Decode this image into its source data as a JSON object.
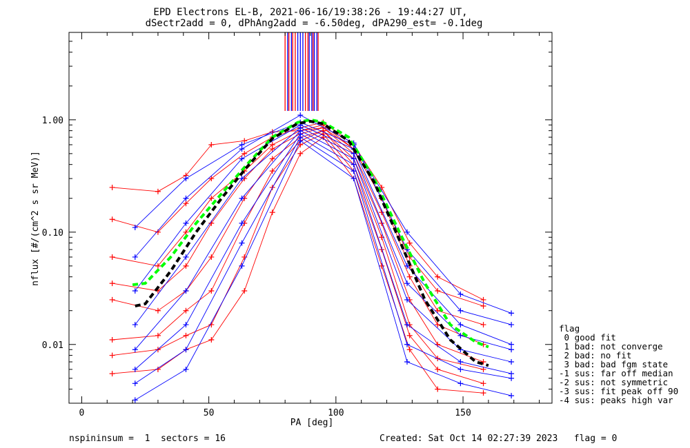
{
  "chart_data": {
    "type": "line",
    "title": "EPD Electrons EL-B, 2021-06-16/19:38:26 - 19:44:27 UT,",
    "subtitle": "dSectr2add = 0, dPhAng2add = -6.50deg, dPA290_est=  -0.1deg",
    "xlabel": "PA [deg]",
    "ylabel": "nflux [#/(cm^2 s sr MeV)]",
    "xlim": [
      -5,
      185
    ],
    "ylim": [
      0.003,
      6.0
    ],
    "yscale": "log",
    "x_ticks": [
      0,
      50,
      100,
      150
    ],
    "x_tick_labels": [
      "0",
      "50",
      "100",
      "150"
    ],
    "y_ticks": [
      0.01,
      0.1,
      1.0
    ],
    "y_tick_labels": [
      "0.01",
      "0.10",
      "1.00"
    ],
    "grid": false,
    "series": [
      {
        "color": "#ff0000",
        "x": [
          12,
          30,
          41,
          51,
          64,
          75,
          86,
          95,
          107,
          118,
          129,
          140,
          158
        ],
        "y": [
          0.25,
          0.23,
          0.32,
          0.6,
          0.65,
          0.78,
          0.8,
          0.85,
          0.55,
          0.2,
          0.06,
          0.03,
          0.022
        ]
      },
      {
        "color": "#ff0000",
        "x": [
          12,
          30,
          41,
          51,
          64,
          75,
          86,
          95,
          107,
          118,
          129,
          140,
          158
        ],
        "y": [
          0.13,
          0.1,
          0.18,
          0.3,
          0.5,
          0.7,
          0.85,
          0.95,
          0.6,
          0.25,
          0.08,
          0.04,
          0.025
        ]
      },
      {
        "color": "#ff0000",
        "x": [
          12,
          30,
          41,
          51,
          64,
          75,
          86,
          95,
          107,
          118,
          129,
          140,
          158
        ],
        "y": [
          0.06,
          0.05,
          0.1,
          0.2,
          0.35,
          0.6,
          0.8,
          0.9,
          0.55,
          0.2,
          0.05,
          0.02,
          0.015
        ]
      },
      {
        "color": "#ff0000",
        "x": [
          12,
          30,
          41,
          51,
          64,
          75,
          86,
          95,
          107,
          118,
          129,
          140,
          158
        ],
        "y": [
          0.035,
          0.03,
          0.05,
          0.12,
          0.3,
          0.55,
          0.75,
          0.85,
          0.5,
          0.15,
          0.04,
          0.015,
          0.01
        ]
      },
      {
        "color": "#ff0000",
        "x": [
          12,
          30,
          41,
          51,
          64,
          75,
          86,
          95,
          107,
          118,
          129,
          140,
          158
        ],
        "y": [
          0.025,
          0.02,
          0.03,
          0.06,
          0.2,
          0.45,
          0.7,
          0.8,
          0.45,
          0.12,
          0.025,
          0.01,
          0.007
        ]
      },
      {
        "color": "#ff0000",
        "x": [
          12,
          30,
          41,
          51,
          64,
          75,
          86,
          95,
          107,
          118,
          129,
          140,
          158
        ],
        "y": [
          0.011,
          0.012,
          0.02,
          0.03,
          0.12,
          0.35,
          0.65,
          0.8,
          0.4,
          0.09,
          0.015,
          0.0075,
          0.006
        ]
      },
      {
        "color": "#ff0000",
        "x": [
          12,
          30,
          41,
          51,
          64,
          75,
          86,
          95,
          107,
          118,
          129,
          140,
          158
        ],
        "y": [
          0.008,
          0.009,
          0.012,
          0.015,
          0.06,
          0.25,
          0.6,
          0.75,
          0.35,
          0.07,
          0.012,
          0.006,
          0.0045
        ]
      },
      {
        "color": "#ff0000",
        "x": [
          12,
          30,
          41,
          51,
          64,
          75,
          86,
          95,
          107,
          118,
          129,
          140,
          158
        ],
        "y": [
          0.0055,
          0.006,
          0.009,
          0.011,
          0.03,
          0.15,
          0.5,
          0.7,
          0.3,
          0.05,
          0.009,
          0.004,
          0.0037
        ]
      },
      {
        "color": "#0000ff",
        "x": [
          21,
          41,
          63,
          86,
          107,
          128,
          149,
          169
        ],
        "y": [
          0.11,
          0.3,
          0.6,
          0.95,
          0.6,
          0.1,
          0.028,
          0.019
        ]
      },
      {
        "color": "#0000ff",
        "x": [
          21,
          41,
          63,
          86,
          107,
          128,
          149,
          169
        ],
        "y": [
          0.06,
          0.2,
          0.55,
          1.1,
          0.62,
          0.07,
          0.02,
          0.015
        ]
      },
      {
        "color": "#0000ff",
        "x": [
          21,
          41,
          63,
          86,
          107,
          128,
          149,
          169
        ],
        "y": [
          0.03,
          0.12,
          0.45,
          0.9,
          0.55,
          0.05,
          0.015,
          0.01
        ]
      },
      {
        "color": "#0000ff",
        "x": [
          21,
          41,
          63,
          86,
          107,
          128,
          149,
          169
        ],
        "y": [
          0.015,
          0.06,
          0.3,
          0.85,
          0.5,
          0.035,
          0.012,
          0.009
        ]
      },
      {
        "color": "#0000ff",
        "x": [
          21,
          41,
          63,
          86,
          107,
          128,
          149,
          169
        ],
        "y": [
          0.009,
          0.03,
          0.2,
          0.8,
          0.45,
          0.025,
          0.009,
          0.007
        ]
      },
      {
        "color": "#0000ff",
        "x": [
          21,
          41,
          63,
          86,
          107,
          128,
          149,
          169
        ],
        "y": [
          0.006,
          0.015,
          0.12,
          0.75,
          0.4,
          0.015,
          0.007,
          0.0055
        ]
      },
      {
        "color": "#0000ff",
        "x": [
          21,
          41,
          63,
          86,
          107,
          128,
          149,
          169
        ],
        "y": [
          0.0045,
          0.009,
          0.08,
          0.7,
          0.35,
          0.01,
          0.006,
          0.005
        ]
      },
      {
        "color": "#0000ff",
        "x": [
          21,
          41,
          63,
          86,
          107,
          128,
          149,
          169
        ],
        "y": [
          0.0032,
          0.006,
          0.05,
          0.65,
          0.3,
          0.007,
          0.0045,
          0.0035
        ]
      },
      {
        "color": "#00ff00",
        "style": "dashed",
        "x": [
          20,
          25,
          35,
          45,
          55,
          65,
          75,
          85,
          90,
          95,
          105,
          115,
          125,
          135,
          145,
          155,
          160
        ],
        "y": [
          0.034,
          0.035,
          0.06,
          0.12,
          0.22,
          0.4,
          0.7,
          0.95,
          1.0,
          0.95,
          0.7,
          0.3,
          0.1,
          0.035,
          0.015,
          0.0105,
          0.0095
        ]
      },
      {
        "color": "#000000",
        "style": "dashed",
        "x": [
          21,
          25,
          35,
          45,
          55,
          65,
          75,
          85,
          90,
          95,
          105,
          115,
          125,
          135,
          145,
          155,
          160
        ],
        "y": [
          0.022,
          0.023,
          0.045,
          0.1,
          0.2,
          0.38,
          0.68,
          0.93,
          0.97,
          0.92,
          0.65,
          0.28,
          0.085,
          0.025,
          0.011,
          0.007,
          0.0065
        ]
      }
    ],
    "vertical_spikes": {
      "ymin": 1.2,
      "red_x": [
        80,
        81.5,
        83,
        84,
        88,
        89,
        91,
        93
      ],
      "blue_x": [
        81,
        82.5,
        85,
        86,
        87,
        89.5,
        90.5,
        91.5,
        92.5
      ]
    },
    "annotations": {
      "bottom_left": "nspininsum =  1  sectors = 16",
      "bottom_right": "Created: Sat Oct 14 02:27:39 2023   flag = 0"
    },
    "flag_legend": {
      "heading": "flag",
      "lines": [
        " 0 good fit",
        " 1 bad: not converge",
        " 2 bad: no fit",
        " 3 bad: bad fgm state",
        "-1 sus: far off median",
        "-2 sus: not symmetric",
        "-3 sus: fit peak off 90",
        "-4 sus: peaks high var"
      ]
    }
  }
}
